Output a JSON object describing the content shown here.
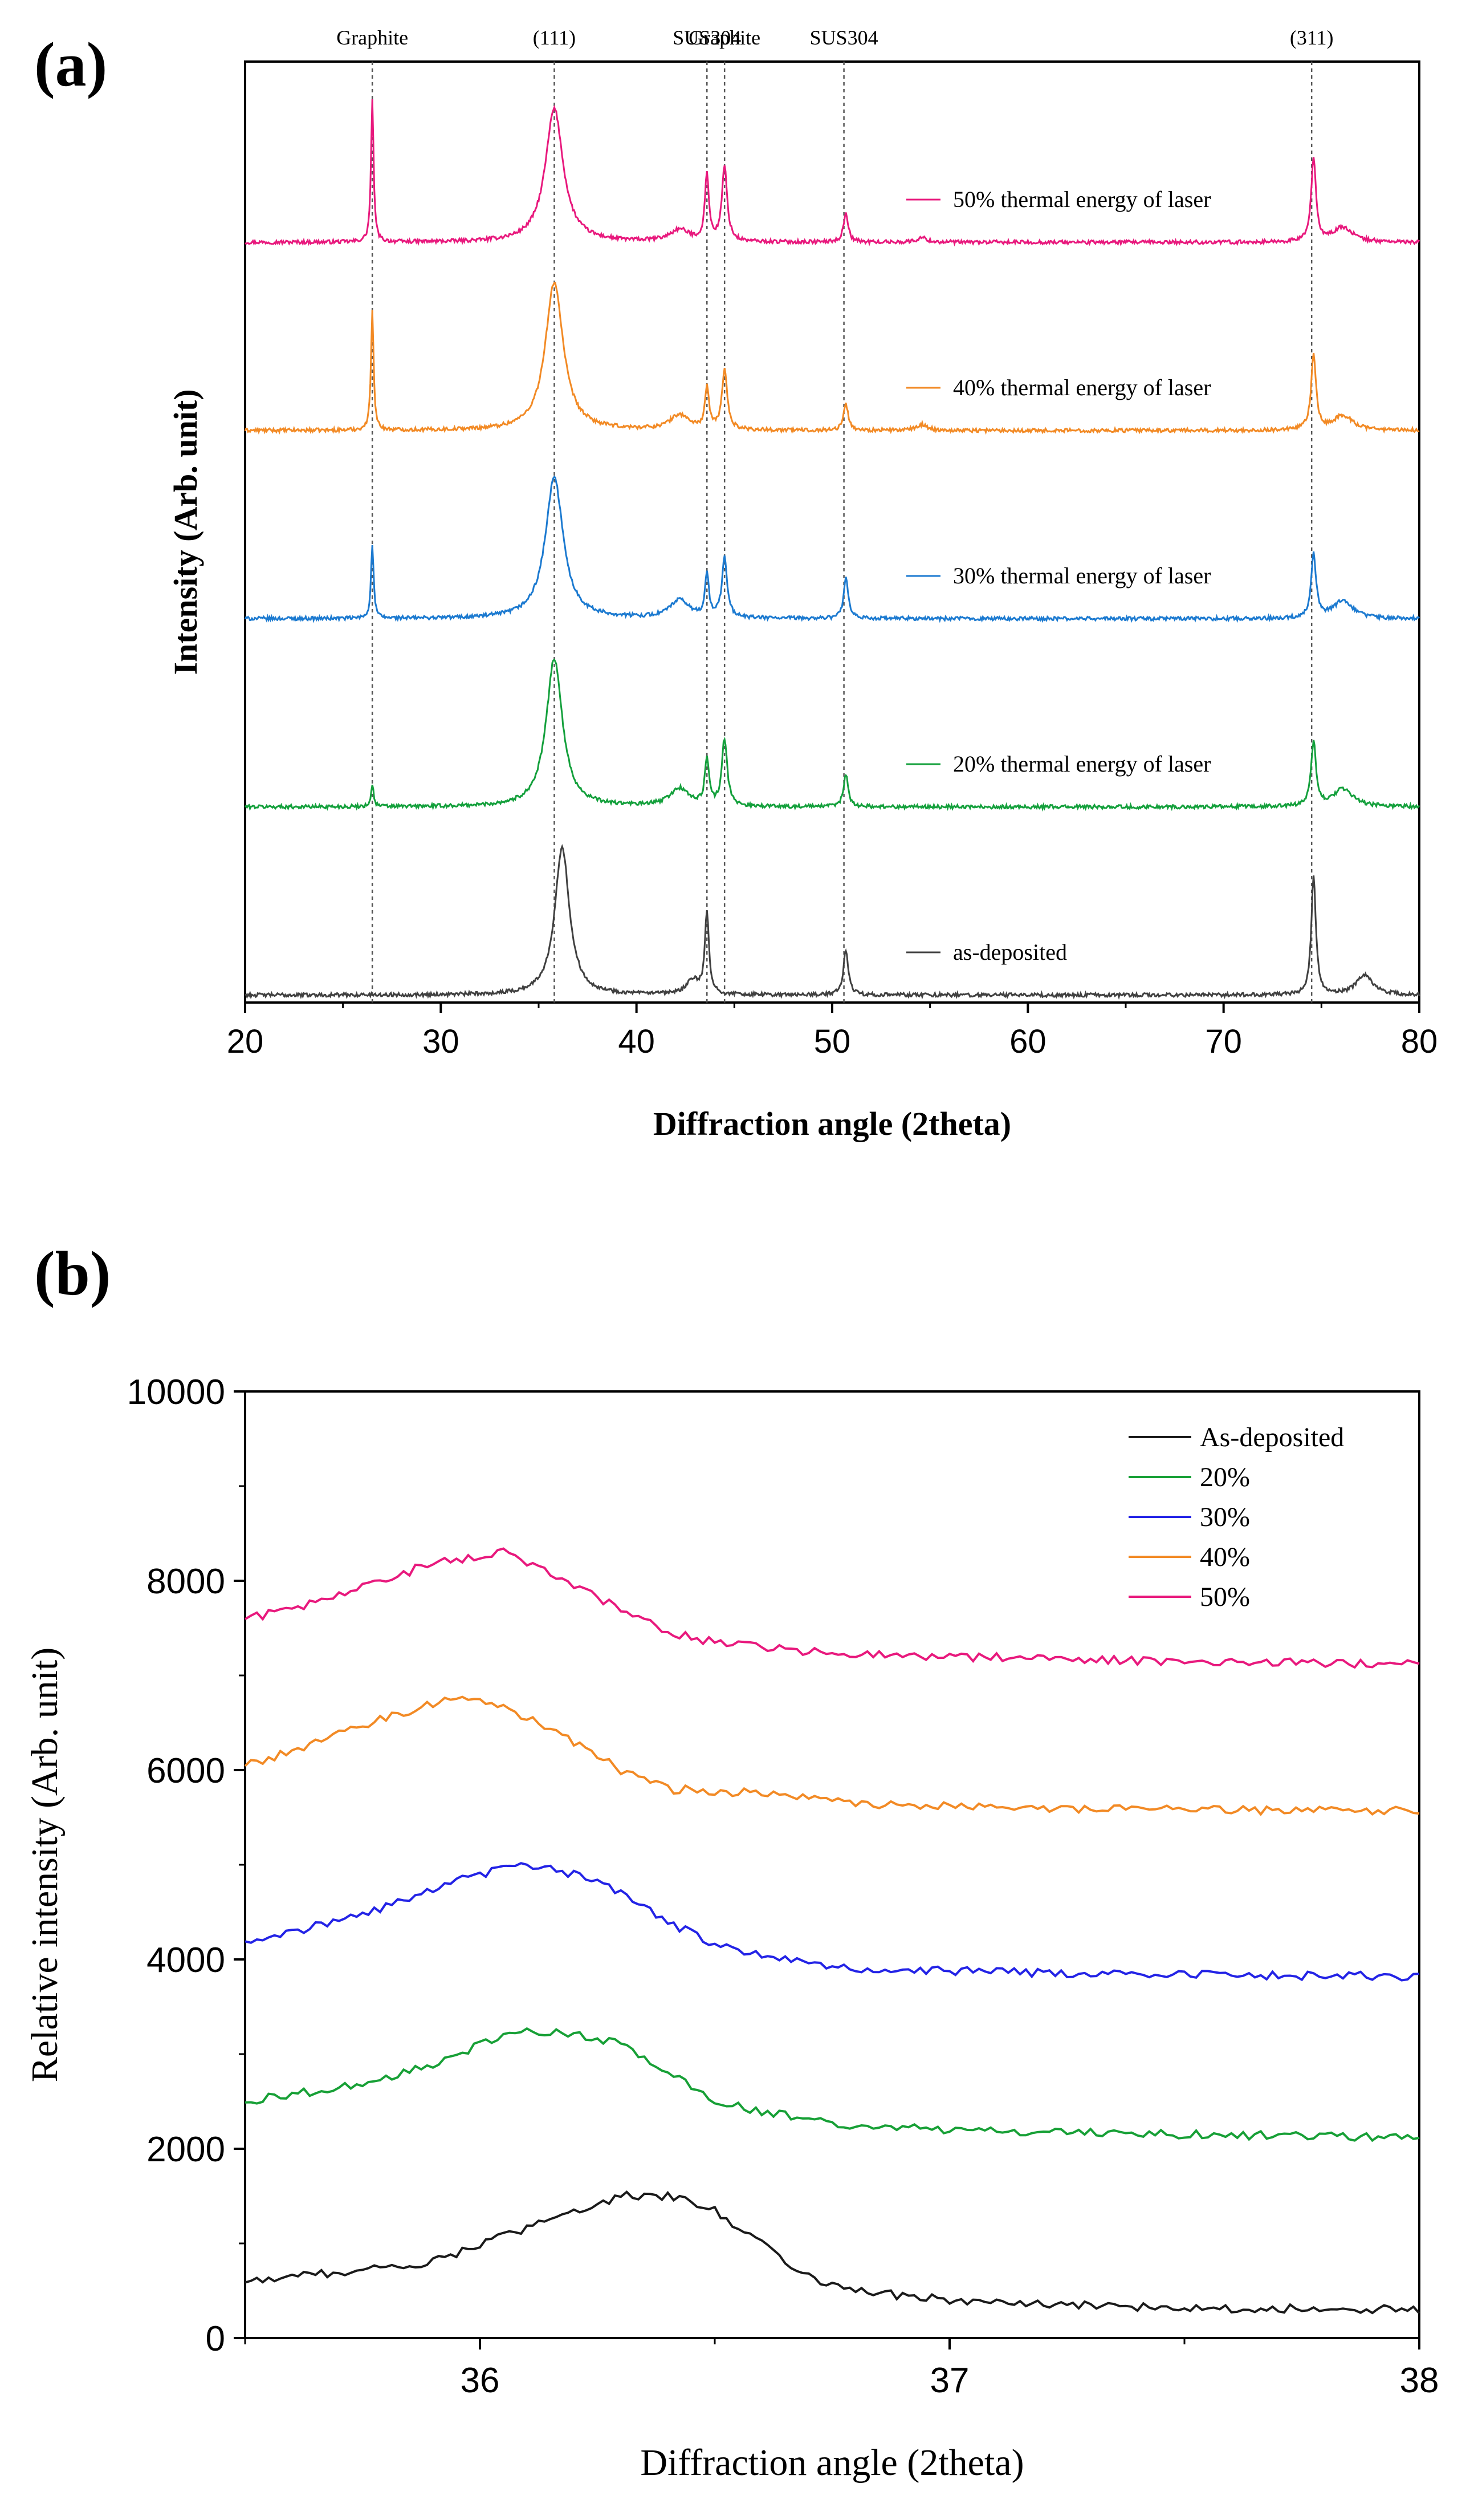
{
  "chart_data": [
    {
      "panel_label": "(a)",
      "type": "line",
      "title": "",
      "xlabel": "Diffraction angle (2theta)",
      "ylabel": "Intensity (Arb. unit)",
      "xlim": [
        20,
        80
      ],
      "xticks": [
        20,
        30,
        40,
        50,
        60,
        70,
        80
      ],
      "y_ticks_shown": false,
      "peak_markers": [
        {
          "x": 26.5,
          "label": "Graphite"
        },
        {
          "x": 35.8,
          "label": "(111)"
        },
        {
          "x": 43.6,
          "label": "SUS304"
        },
        {
          "x": 44.5,
          "label": "Graphite"
        },
        {
          "x": 50.6,
          "label": "SUS304"
        },
        {
          "x": 74.5,
          "label": "(311)"
        }
      ],
      "series": [
        {
          "name": "50% thermal energy of laser",
          "color": "#e8197d",
          "offset": 4,
          "peaks": [
            [
              26.5,
              0.95,
              0.08
            ],
            [
              35.8,
              0.9,
              0.55
            ],
            [
              42.2,
              0.08,
              0.6
            ],
            [
              43.6,
              0.45,
              0.12
            ],
            [
              44.5,
              0.5,
              0.16
            ],
            [
              50.7,
              0.2,
              0.14
            ],
            [
              54.6,
              0.03,
              0.3
            ],
            [
              74.6,
              0.55,
              0.15
            ],
            [
              76.1,
              0.1,
              0.6
            ]
          ]
        },
        {
          "name": "40% thermal energy of laser",
          "color": "#f28a25",
          "offset": 3,
          "peaks": [
            [
              26.5,
              0.82,
              0.08
            ],
            [
              35.8,
              1.0,
              0.55
            ],
            [
              42.2,
              0.1,
              0.6
            ],
            [
              43.6,
              0.28,
              0.12
            ],
            [
              44.5,
              0.4,
              0.16
            ],
            [
              50.7,
              0.18,
              0.14
            ],
            [
              54.6,
              0.04,
              0.3
            ],
            [
              74.6,
              0.5,
              0.15
            ],
            [
              76.1,
              0.1,
              0.6
            ]
          ]
        },
        {
          "name": "30% thermal energy of laser",
          "color": "#1c7ad0",
          "offset": 2,
          "peaks": [
            [
              26.5,
              0.5,
              0.08
            ],
            [
              35.8,
              0.95,
              0.55
            ],
            [
              42.2,
              0.12,
              0.6
            ],
            [
              43.6,
              0.28,
              0.12
            ],
            [
              44.5,
              0.4,
              0.16
            ],
            [
              50.7,
              0.27,
              0.14
            ],
            [
              74.6,
              0.43,
              0.15
            ],
            [
              76.1,
              0.12,
              0.6
            ]
          ]
        },
        {
          "name": "20% thermal energy of laser",
          "color": "#14a03c",
          "offset": 1,
          "peaks": [
            [
              26.5,
              0.15,
              0.08
            ],
            [
              35.8,
              1.0,
              0.5
            ],
            [
              42.2,
              0.12,
              0.6
            ],
            [
              43.6,
              0.32,
              0.12
            ],
            [
              44.5,
              0.45,
              0.16
            ],
            [
              50.7,
              0.22,
              0.14
            ],
            [
              74.6,
              0.43,
              0.15
            ],
            [
              76.1,
              0.12,
              0.6
            ]
          ]
        },
        {
          "name": "as-deposited",
          "color": "#404040",
          "offset": 0,
          "peaks": [
            [
              36.2,
              1.0,
              0.45
            ],
            [
              42.9,
              0.1,
              0.4
            ],
            [
              43.6,
              0.55,
              0.12
            ],
            [
              50.7,
              0.3,
              0.15
            ],
            [
              74.6,
              0.8,
              0.14
            ],
            [
              77.2,
              0.14,
              0.5
            ]
          ]
        }
      ]
    },
    {
      "panel_label": "(b)",
      "type": "line",
      "title": "",
      "xlabel": "Diffraction angle (2theta)",
      "ylabel": "Relative intensity (Arb. unit)",
      "xlim": [
        35.5,
        38
      ],
      "ylim": [
        0,
        10000
      ],
      "xticks": [
        36,
        37,
        38
      ],
      "xtick_labels": [
        "36",
        "37",
        "38"
      ],
      "yticks": [
        0,
        2000,
        4000,
        6000,
        8000,
        10000
      ],
      "ytick_labels": [
        "0",
        "2000",
        "4000",
        "6000",
        "8000",
        "10000"
      ],
      "legend_position": "top-right",
      "series": [
        {
          "name": "As-deposited",
          "color": "#1a1a1a",
          "x": [
            35.5,
            35.7,
            35.9,
            36.0,
            36.1,
            36.2,
            36.3,
            36.4,
            36.5,
            36.6,
            36.7,
            36.8,
            37.0,
            37.2,
            37.5,
            38.0
          ],
          "y": [
            600,
            700,
            800,
            1000,
            1150,
            1350,
            1500,
            1500,
            1350,
            1000,
            650,
            500,
            400,
            350,
            320,
            300
          ]
        },
        {
          "name": "20%",
          "color": "#17a036",
          "x": [
            35.5,
            35.7,
            35.8,
            35.9,
            36.0,
            36.1,
            36.2,
            36.3,
            36.4,
            36.5,
            36.6,
            36.7,
            36.8,
            37.0,
            37.2,
            37.5,
            38.0
          ],
          "y": [
            2500,
            2650,
            2750,
            2900,
            3100,
            3250,
            3200,
            3100,
            2800,
            2500,
            2400,
            2300,
            2250,
            2200,
            2180,
            2150,
            2120
          ]
        },
        {
          "name": "30%",
          "color": "#2323e6",
          "x": [
            35.5,
            35.7,
            35.8,
            35.9,
            36.0,
            36.1,
            36.2,
            36.3,
            36.4,
            36.5,
            36.6,
            36.7,
            36.8,
            37.0,
            37.2,
            37.5,
            38.0
          ],
          "y": [
            4200,
            4400,
            4550,
            4750,
            4900,
            5000,
            4900,
            4700,
            4400,
            4150,
            4050,
            3950,
            3900,
            3880,
            3860,
            3840,
            3820
          ]
        },
        {
          "name": "40%",
          "color": "#f28a25",
          "x": [
            35.5,
            35.6,
            35.7,
            35.8,
            35.9,
            35.95,
            36.0,
            36.1,
            36.2,
            36.3,
            36.4,
            36.5,
            36.6,
            36.7,
            36.8,
            37.0,
            37.2,
            37.5,
            38.0
          ],
          "y": [
            6050,
            6200,
            6400,
            6550,
            6700,
            6780,
            6750,
            6550,
            6300,
            6000,
            5800,
            5780,
            5750,
            5700,
            5650,
            5620,
            5600,
            5580,
            5570
          ]
        },
        {
          "name": "50%",
          "color": "#e8197d",
          "x": [
            35.5,
            35.6,
            35.7,
            35.8,
            35.9,
            36.0,
            36.05,
            36.1,
            36.2,
            36.3,
            36.4,
            36.5,
            36.6,
            36.7,
            36.8,
            37.0,
            37.2,
            37.5,
            38.0
          ],
          "y": [
            7600,
            7700,
            7850,
            8000,
            8200,
            8250,
            8300,
            8200,
            7950,
            7700,
            7450,
            7350,
            7300,
            7250,
            7230,
            7200,
            7180,
            7150,
            7120
          ]
        }
      ]
    }
  ]
}
